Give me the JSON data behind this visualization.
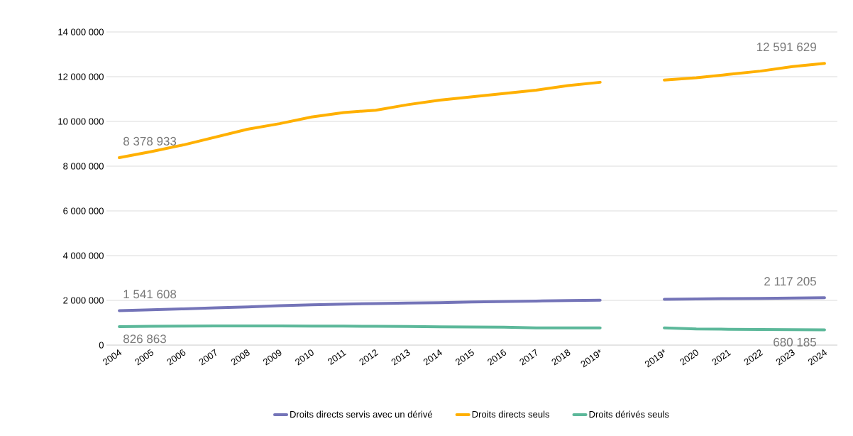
{
  "chart_data": {
    "type": "line",
    "categories": [
      "2004",
      "2005",
      "2006",
      "2007",
      "2008",
      "2009",
      "2010",
      "2011",
      "2012",
      "2013",
      "2014",
      "2015",
      "2016",
      "2017",
      "2018",
      "2019*",
      null,
      "2019*",
      "2020",
      "2021",
      "2022",
      "2023",
      "2024"
    ],
    "series": [
      {
        "name": "Droits directs servis avec un dérivé",
        "color": "#7474b8",
        "values": [
          1541608,
          1580000,
          1620000,
          1670000,
          1710000,
          1760000,
          1800000,
          1830000,
          1860000,
          1880000,
          1900000,
          1930000,
          1950000,
          1970000,
          1990000,
          2010000,
          null,
          2050000,
          2060000,
          2080000,
          2090000,
          2100000,
          2117205
        ],
        "value_labels": [
          "1 541 608",
          null,
          null,
          null,
          null,
          null,
          null,
          null,
          null,
          null,
          null,
          null,
          null,
          null,
          null,
          null,
          null,
          null,
          null,
          null,
          null,
          null,
          "2 117 205"
        ]
      },
      {
        "name": "Droits directs seuls",
        "color": "#ffb000",
        "values": [
          8378933,
          8650000,
          8950000,
          9300000,
          9650000,
          9900000,
          10200000,
          10400000,
          10500000,
          10750000,
          10950000,
          11100000,
          11250000,
          11400000,
          11600000,
          11750000,
          null,
          11850000,
          11950000,
          12100000,
          12250000,
          12450000,
          12591629
        ],
        "value_labels": [
          "8 378 933",
          null,
          null,
          null,
          null,
          null,
          null,
          null,
          null,
          null,
          null,
          null,
          null,
          null,
          null,
          null,
          null,
          null,
          null,
          null,
          null,
          null,
          "12 591 629"
        ]
      },
      {
        "name": "Droits dérivés seuls",
        "color": "#5cb89a",
        "values": [
          826863,
          840000,
          850000,
          860000,
          860000,
          860000,
          850000,
          850000,
          840000,
          830000,
          820000,
          810000,
          800000,
          770000,
          770000,
          770000,
          null,
          770000,
          720000,
          710000,
          700000,
          690000,
          680185
        ],
        "value_labels": [
          "826 863",
          null,
          null,
          null,
          null,
          null,
          null,
          null,
          null,
          null,
          null,
          null,
          null,
          null,
          null,
          null,
          null,
          null,
          null,
          null,
          null,
          null,
          "680 185"
        ]
      }
    ],
    "ylim": [
      0,
      14000000
    ],
    "yticks": [
      {
        "value": 0,
        "label": "0"
      },
      {
        "value": 2000000,
        "label": "2 000 000"
      },
      {
        "value": 4000000,
        "label": "4 000 000"
      },
      {
        "value": 6000000,
        "label": "6 000 000"
      },
      {
        "value": 8000000,
        "label": "8 000 000"
      },
      {
        "value": 10000000,
        "label": "10 000 000"
      },
      {
        "value": 12000000,
        "label": "12 000 000"
      },
      {
        "value": 14000000,
        "label": "14 000 000"
      }
    ],
    "grid": "y",
    "legend": "bottom",
    "marker": "none",
    "line_style": "solid"
  }
}
